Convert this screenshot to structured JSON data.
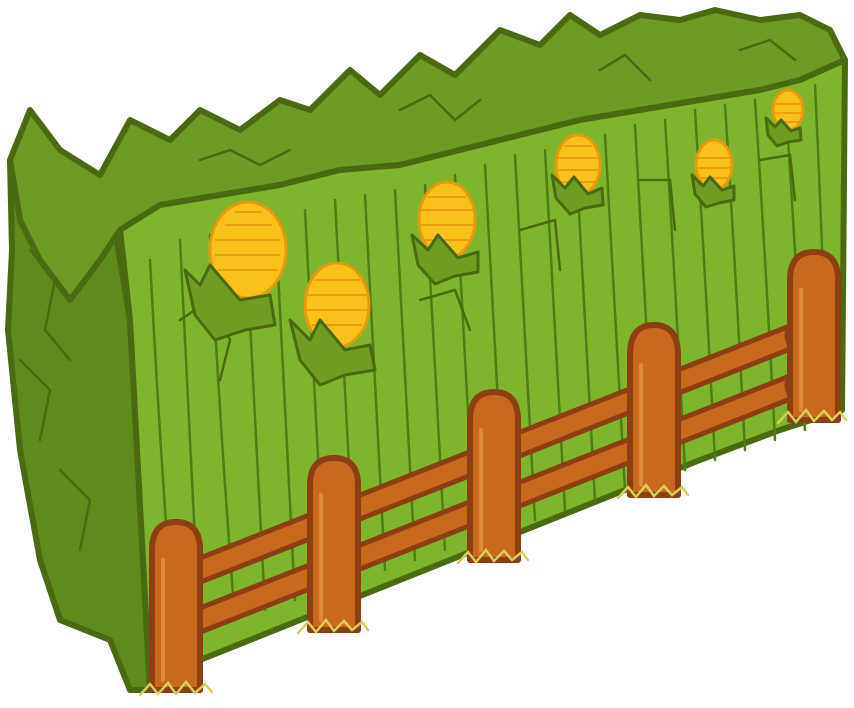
{
  "scene": {
    "subject": "cornfield-hedge-with-wooden-fence",
    "colors": {
      "background": "#ffffff",
      "outline": "#4a6a12",
      "hedge_top": "#6e9a26",
      "hedge_side": "#5f8a1c",
      "hedge_front": "#7fb52c",
      "stalk_line": "#4f7c16",
      "corn": "#f9c21b",
      "corn_shade": "#f0a10f",
      "husk": "#6e9d22",
      "fence_wood": "#c9691f",
      "fence_wood_dark": "#8b3f12",
      "grass_tuft": "#d9cf57"
    },
    "corn_ear_count": 6,
    "fence_post_count": 5,
    "fence_rail_rows": 2
  }
}
